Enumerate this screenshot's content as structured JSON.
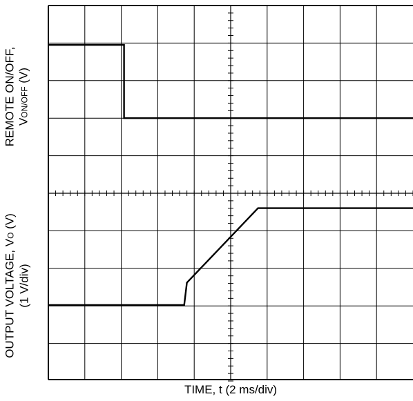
{
  "chart_data": [
    {
      "type": "line",
      "ylabel_main": "REMOTE ON/OFF,",
      "ylabel_sym": "V",
      "ylabel_sub": "ON/OFF",
      "ylabel_unit": " (V)",
      "xlabel": "TIME, t (2 ms/div)",
      "xlim": [
        0,
        20
      ],
      "x_divisions": 10,
      "y_divisions": 5,
      "series": [
        {
          "x": [
            0,
            4.15,
            4.15,
            20
          ],
          "y": [
            3.95,
            3.95,
            2.0,
            2.0
          ]
        }
      ]
    },
    {
      "type": "line",
      "ylabel_main": "OUTPUT VOLTAGE, V",
      "ylabel_sub": "O",
      "ylabel_unit": " (V)",
      "ylabel_scale": "(1 V/div)",
      "xlim": [
        0,
        20
      ],
      "ylim": [
        -2,
        3
      ],
      "x_divisions": 10,
      "y_divisions": 5,
      "series": [
        {
          "x": [
            0,
            7.45,
            7.6,
            11.5,
            20
          ],
          "y": [
            0,
            0,
            0.6,
            2.6,
            2.6
          ]
        }
      ]
    }
  ]
}
